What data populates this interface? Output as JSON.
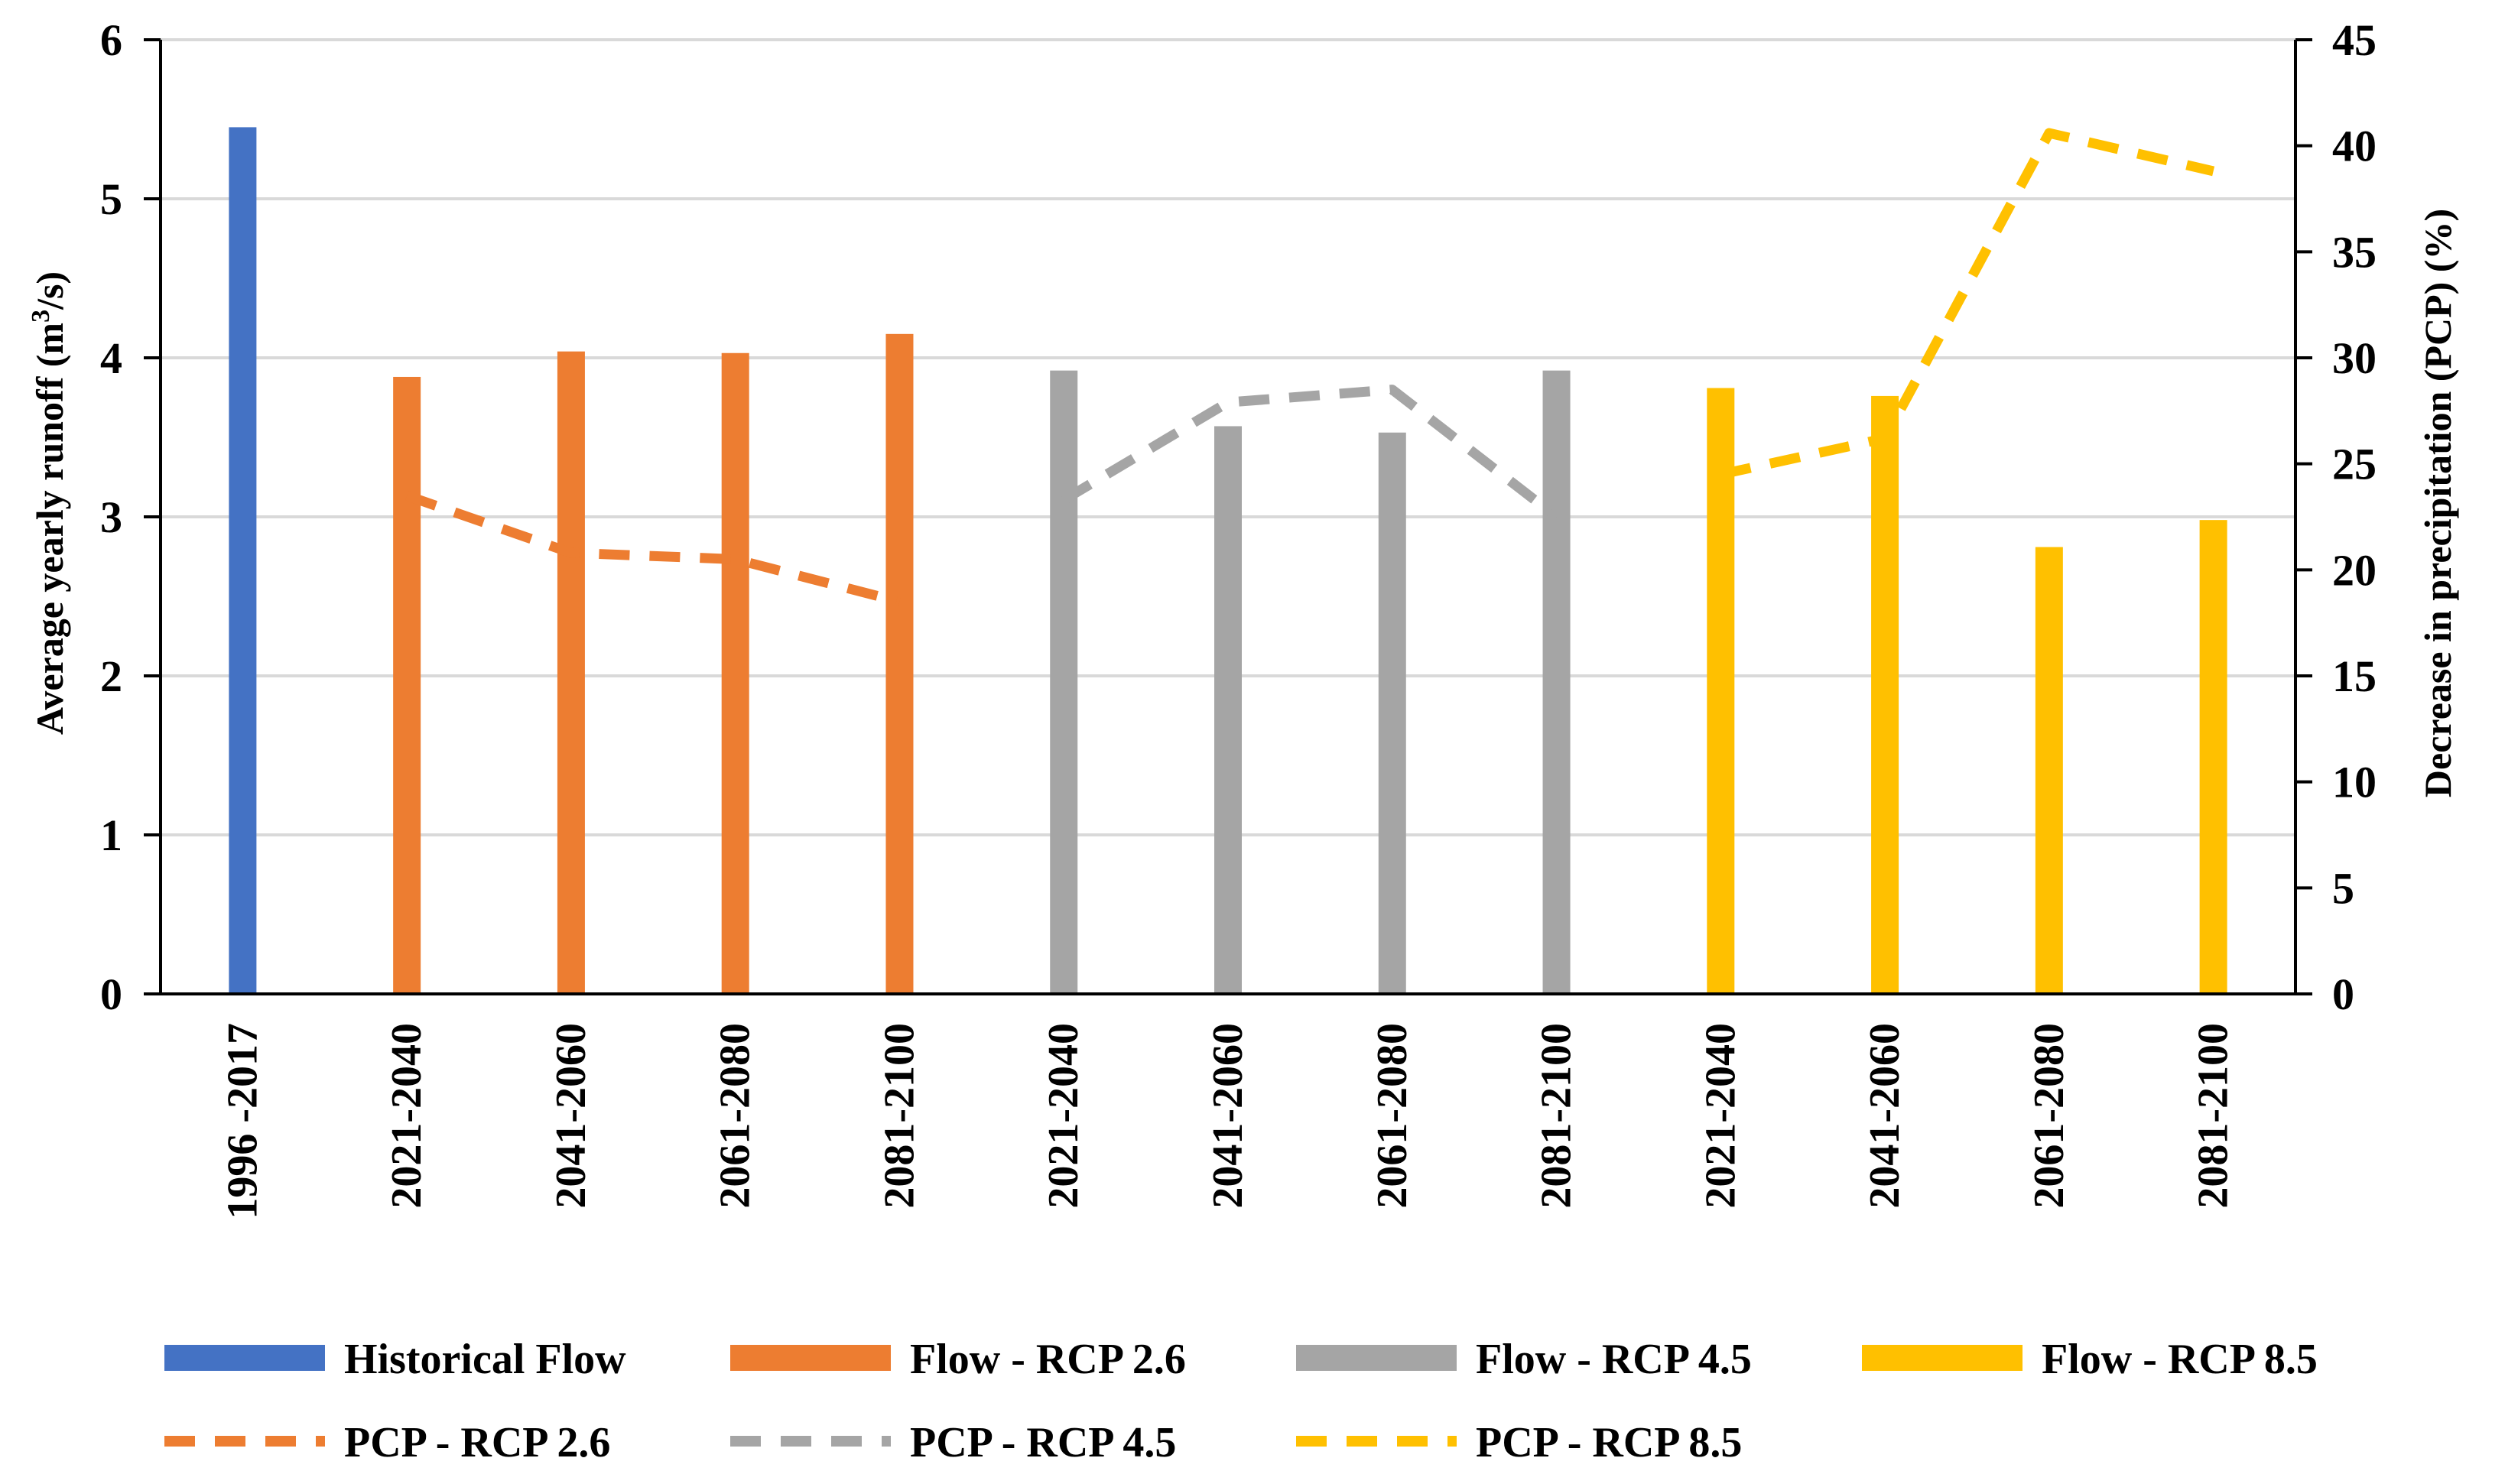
{
  "chart_data": {
    "type": "bar",
    "title": "",
    "ylabel": "Average yearly runoff (m³/s)",
    "ylabel_parts": [
      "Average yearly runoff (m",
      "3",
      "/s)"
    ],
    "y2label": "Decrease in precipitation (PCP) (%)",
    "ylim": [
      0,
      6
    ],
    "y2lim": [
      0,
      45
    ],
    "yticks": [
      "0",
      "1",
      "2",
      "3",
      "4",
      "5",
      "6"
    ],
    "y2ticks": [
      "0",
      "5",
      "10",
      "15",
      "20",
      "25",
      "30",
      "35",
      "40",
      "45"
    ],
    "grid": true,
    "legend_position": "bottom",
    "categories": [
      "1996 -2017",
      "2021-2040",
      "2041-2060",
      "2061-2080",
      "2081-2100",
      "2021-2040",
      "2041-2060",
      "2061-2080",
      "2081-2100",
      "2021-2040",
      "2041-2060",
      "2061-2080",
      "2081-2100"
    ],
    "bar_series": [
      {
        "name": "Historical Flow",
        "color": "#4472C4",
        "category_index": [
          0
        ],
        "values": [
          5.45
        ]
      },
      {
        "name": "Flow - RCP 2.6",
        "color": "#ED7D31",
        "category_index": [
          1,
          2,
          3,
          4
        ],
        "values": [
          3.88,
          4.04,
          4.03,
          4.15
        ]
      },
      {
        "name": "Flow - RCP 4.5",
        "color": "#A5A5A5",
        "category_index": [
          5,
          6,
          7,
          8
        ],
        "values": [
          3.92,
          3.57,
          3.53,
          3.92
        ]
      },
      {
        "name": "Flow - RCP 8.5",
        "color": "#FFC000",
        "category_index": [
          9,
          10,
          11,
          12
        ],
        "values": [
          3.81,
          3.76,
          2.81,
          2.98
        ]
      }
    ],
    "line_series": [
      {
        "name": "PCP - RCP 2.6",
        "color": "#ED7D31",
        "axis": "right",
        "category_index": [
          1,
          2,
          3,
          4
        ],
        "values": [
          23.5,
          20.8,
          20.5,
          18.5
        ]
      },
      {
        "name": "PCP - RCP 4.5",
        "color": "#A5A5A5",
        "axis": "right",
        "category_index": [
          5,
          6,
          7,
          8
        ],
        "values": [
          23.3,
          27.9,
          28.5,
          22.5
        ]
      },
      {
        "name": "PCP - RCP 8.5",
        "color": "#FFC000",
        "axis": "right",
        "category_index": [
          9,
          10,
          11,
          12
        ],
        "values": [
          24.5,
          26.2,
          40.6,
          38.8
        ]
      }
    ],
    "legend": [
      "Historical Flow",
      "Flow - RCP 2.6",
      "Flow - RCP 4.5",
      "Flow - RCP 8.5",
      "PCP - RCP 2.6",
      "PCP - RCP 4.5",
      "PCP - RCP 8.5"
    ]
  }
}
